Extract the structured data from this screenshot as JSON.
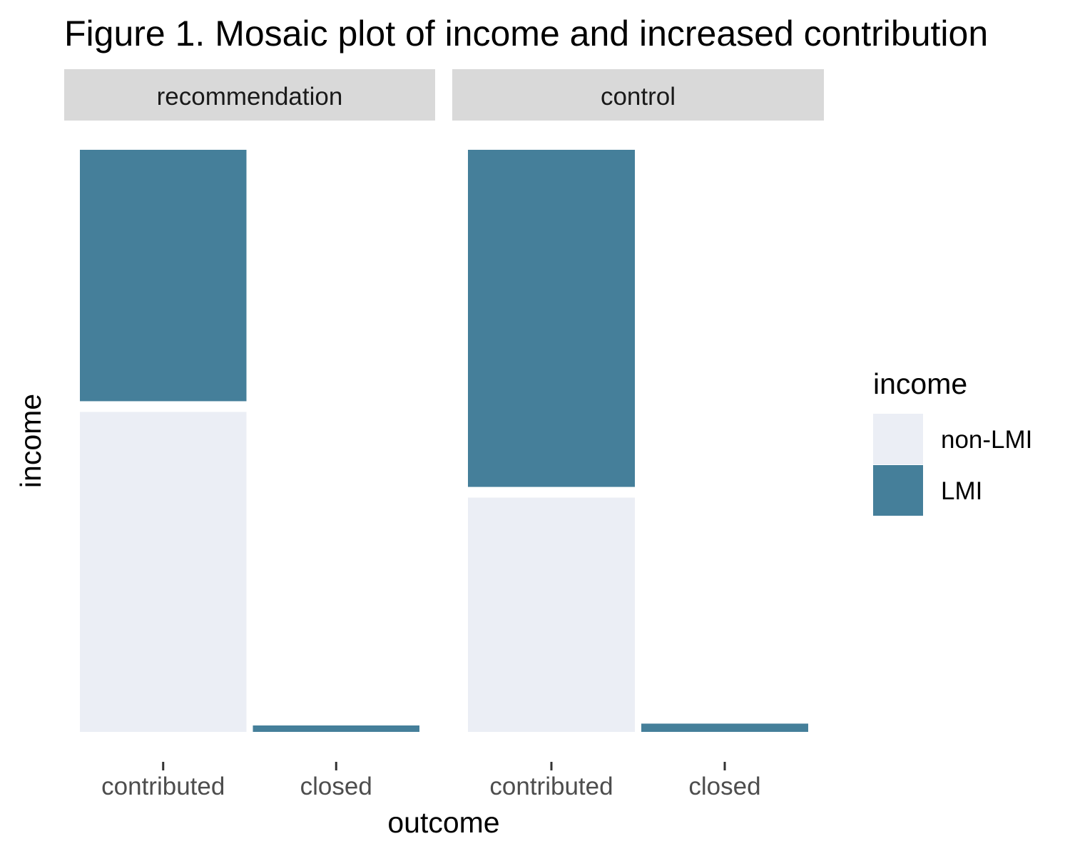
{
  "chart_data": {
    "type": "mosaic",
    "title": "Figure 1. Mosaic plot of income and increased contribution",
    "xlabel": "outcome",
    "ylabel": "income",
    "categories": [
      "contributed",
      "closed"
    ],
    "legend": {
      "title": "income",
      "placement": "right",
      "entries": [
        {
          "label": "non-LMI",
          "color": "#EBEEF5"
        },
        {
          "label": "LMI",
          "color": "#457F9A"
        }
      ]
    },
    "panels": [
      {
        "label": "recommendation",
        "cells": [
          {
            "outcome": "contributed",
            "share": 0.99,
            "segments": {
              "non-LMI": 0.56,
              "LMI": 0.44
            }
          },
          {
            "outcome": "closed",
            "share": 0.01,
            "segments": {
              "non-LMI": 0.0,
              "LMI": 1.0
            }
          }
        ]
      },
      {
        "label": "control",
        "cells": [
          {
            "outcome": "contributed",
            "share": 0.986,
            "segments": {
              "non-LMI": 0.41,
              "LMI": 0.59
            }
          },
          {
            "outcome": "closed",
            "share": 0.014,
            "segments": {
              "non-LMI": 0.0,
              "LMI": 1.0
            }
          }
        ]
      }
    ],
    "grid": false
  }
}
